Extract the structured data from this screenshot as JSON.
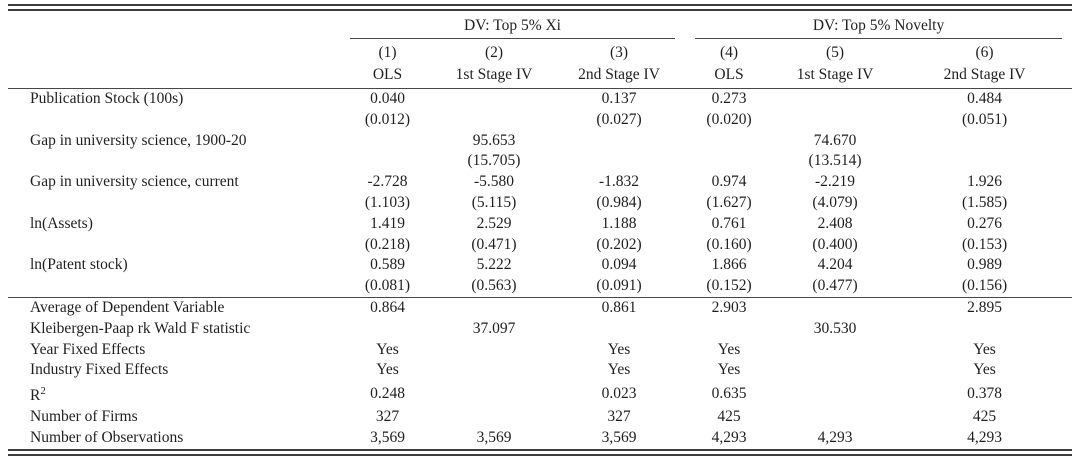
{
  "table": {
    "group_headers": [
      {
        "label": "DV: Top 5% Xi",
        "span": 3
      },
      {
        "label": "DV: Top 5% Novelty",
        "span": 3
      }
    ],
    "column_numbers": [
      "(1)",
      "(2)",
      "(3)",
      "(4)",
      "(5)",
      "(6)"
    ],
    "column_methods": [
      "OLS",
      "1st Stage IV",
      "2nd Stage IV",
      "OLS",
      "1st Stage IV",
      "2nd Stage IV"
    ],
    "coefficient_rows": [
      {
        "label": "Publication Stock (100s)",
        "estimates": [
          "0.040",
          "",
          "0.137",
          "0.273",
          "",
          "0.484"
        ],
        "std_errors": [
          "(0.012)",
          "",
          "(0.027)",
          "(0.020)",
          "",
          "(0.051)"
        ]
      },
      {
        "label": "Gap in university science, 1900-20",
        "estimates": [
          "",
          "95.653",
          "",
          "",
          "74.670",
          ""
        ],
        "std_errors": [
          "",
          "(15.705)",
          "",
          "",
          "(13.514)",
          ""
        ]
      },
      {
        "label": "Gap in university science, current",
        "estimates": [
          "-2.728",
          "-5.580",
          "-1.832",
          "0.974",
          "-2.219",
          "1.926"
        ],
        "std_errors": [
          "(1.103)",
          "(5.115)",
          "(0.984)",
          "(1.627)",
          "(4.079)",
          "(1.585)"
        ]
      },
      {
        "label": "ln(Assets)",
        "estimates": [
          "1.419",
          "2.529",
          "1.188",
          "0.761",
          "2.408",
          "0.276"
        ],
        "std_errors": [
          "(0.218)",
          "(0.471)",
          "(0.202)",
          "(0.160)",
          "(0.400)",
          "(0.153)"
        ]
      },
      {
        "label": "ln(Patent stock)",
        "estimates": [
          "0.589",
          "5.222",
          "0.094",
          "1.866",
          "4.204",
          "0.989"
        ],
        "std_errors": [
          "(0.081)",
          "(0.563)",
          "(0.091)",
          "(0.152)",
          "(0.477)",
          "(0.156)"
        ]
      }
    ],
    "summary_rows": [
      {
        "label": "Average of Dependent Variable",
        "values": [
          "0.864",
          "",
          "0.861",
          "2.903",
          "",
          "2.895"
        ]
      },
      {
        "label": "Kleibergen-Paap rk Wald F statistic",
        "values": [
          "",
          "37.097",
          "",
          "",
          "30.530",
          ""
        ]
      },
      {
        "label": "Year Fixed Effects",
        "values": [
          "Yes",
          "",
          "Yes",
          "Yes",
          "",
          "Yes"
        ]
      },
      {
        "label": "Industry Fixed Effects",
        "values": [
          "Yes",
          "",
          "Yes",
          "Yes",
          "",
          "Yes"
        ]
      },
      {
        "label": "R",
        "label_sup": "2",
        "values": [
          "0.248",
          "",
          "0.023",
          "0.635",
          "",
          "0.378"
        ]
      },
      {
        "label": "Number of Firms",
        "values": [
          "327",
          "",
          "327",
          "425",
          "",
          "425"
        ]
      },
      {
        "label": "Number of Observations",
        "values": [
          "3,569",
          "3,569",
          "3,569",
          "4,293",
          "4,293",
          "4,293"
        ]
      }
    ]
  }
}
